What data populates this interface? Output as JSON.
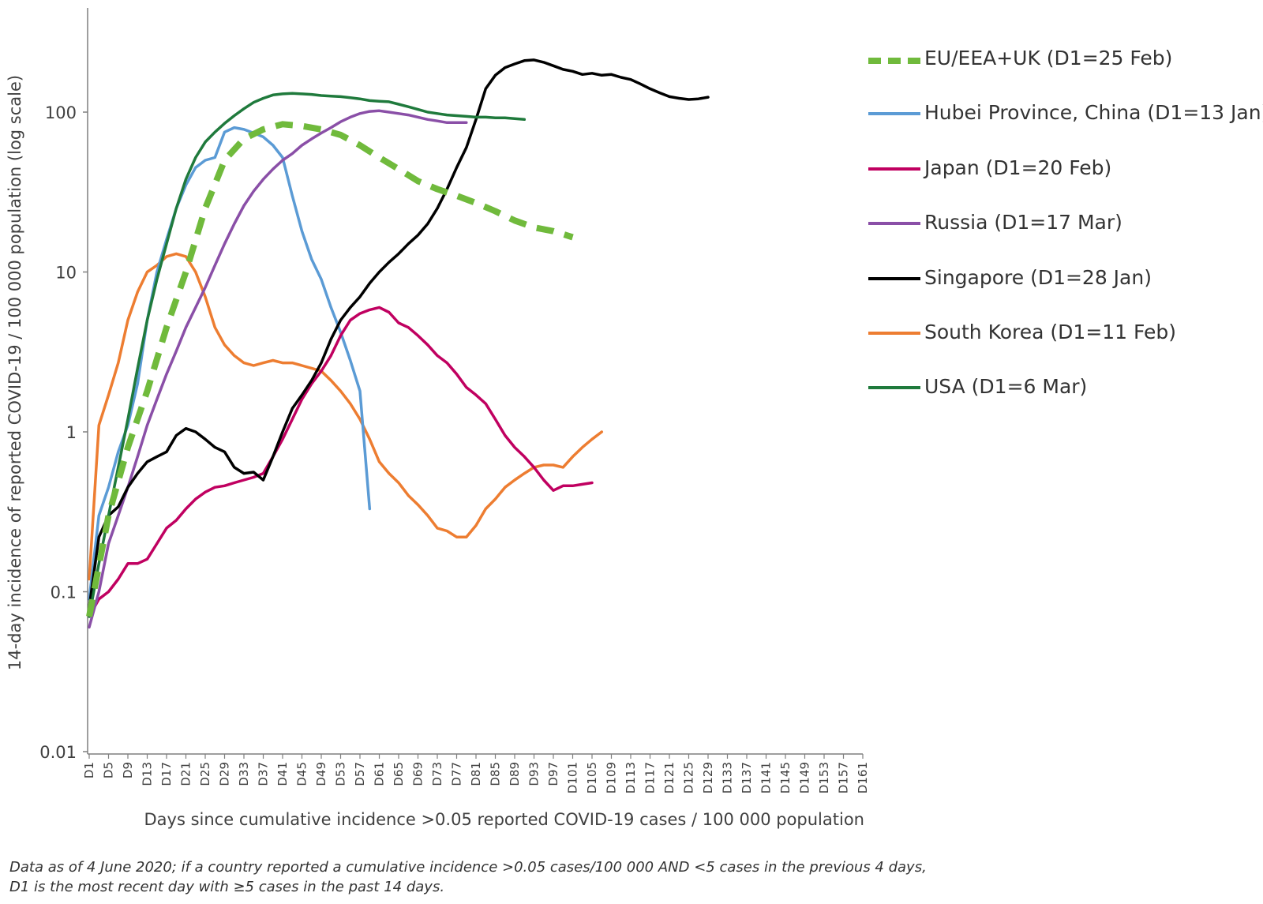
{
  "chart_data": {
    "type": "line",
    "title": "",
    "ylabel": "14-day incidence of reported COVID-19 / 100 000 population (log scale)",
    "xlabel": "Days since cumulative incidence >0.05 reported COVID-19 cases / 100 000 population",
    "yscale": "log",
    "ylim": [
      0.01,
      300
    ],
    "xlim": [
      1,
      162
    ],
    "y_ticks": [
      {
        "value": 0.01,
        "label": "0.01"
      },
      {
        "value": 0.1,
        "label": "0.1"
      },
      {
        "value": 1,
        "label": "1"
      },
      {
        "value": 10,
        "label": "10"
      },
      {
        "value": 100,
        "label": "100"
      }
    ],
    "x_ticks": [
      "D1",
      "D5",
      "D9",
      "D13",
      "D17",
      "D21",
      "D25",
      "D29",
      "D33",
      "D37",
      "D41",
      "D45",
      "D49",
      "D53",
      "D57",
      "D61",
      "D65",
      "D69",
      "D73",
      "D77",
      "D81",
      "D85",
      "D89",
      "D93",
      "D97",
      "D101",
      "D105",
      "D109",
      "D113",
      "D117",
      "D121",
      "D125",
      "D129",
      "D133",
      "D137",
      "D141",
      "D145",
      "D149",
      "D153",
      "D157",
      "D161"
    ],
    "legend_position": "right",
    "series": [
      {
        "name": "EU/EEA+UK  (D1=25 Feb)",
        "color": "#70ba3c",
        "dashed": true,
        "x": [
          1,
          5,
          9,
          13,
          17,
          21,
          25,
          29,
          33,
          37,
          41,
          45,
          49,
          53,
          57,
          61,
          65,
          69,
          73,
          77,
          81,
          85,
          89,
          93,
          97,
          101
        ],
        "y": [
          0.07,
          0.3,
          0.8,
          1.8,
          4.5,
          10,
          25,
          50,
          68,
          78,
          84,
          82,
          78,
          72,
          62,
          52,
          44,
          37,
          33,
          30,
          27,
          24,
          21,
          19,
          18,
          16.5
        ]
      },
      {
        "name": "Hubei Province, China  (D1=13 Jan)",
        "color": "#5b9bd5",
        "dashed": false,
        "x": [
          1,
          3,
          5,
          7,
          9,
          11,
          13,
          15,
          17,
          19,
          21,
          23,
          25,
          27,
          29,
          31,
          33,
          35,
          37,
          39,
          41,
          43,
          45,
          47,
          49,
          51,
          53,
          55,
          57,
          59
        ],
        "y": [
          0.09,
          0.3,
          0.45,
          0.75,
          1.1,
          2,
          5,
          10,
          16,
          25,
          35,
          45,
          50,
          52,
          75,
          80,
          78,
          74,
          70,
          62,
          52,
          30,
          18,
          12,
          9,
          6,
          4.2,
          2.8,
          1.8,
          0.33
        ]
      },
      {
        "name": "Japan  (D1=20 Feb)",
        "color": "#c00060",
        "dashed": false,
        "x": [
          1,
          3,
          5,
          7,
          9,
          11,
          13,
          15,
          17,
          19,
          21,
          23,
          25,
          27,
          29,
          31,
          33,
          35,
          37,
          39,
          41,
          43,
          45,
          47,
          49,
          51,
          53,
          55,
          57,
          59,
          61,
          63,
          65,
          67,
          69,
          71,
          73,
          75,
          77,
          79,
          81,
          83,
          85,
          87,
          89,
          91,
          93,
          95,
          97,
          99,
          101,
          103,
          105
        ],
        "y": [
          0.07,
          0.09,
          0.1,
          0.12,
          0.15,
          0.15,
          0.16,
          0.2,
          0.25,
          0.28,
          0.33,
          0.38,
          0.42,
          0.45,
          0.46,
          0.48,
          0.5,
          0.52,
          0.55,
          0.7,
          0.9,
          1.2,
          1.6,
          2.0,
          2.4,
          3.0,
          4.0,
          5.0,
          5.5,
          5.8,
          6.0,
          5.6,
          4.8,
          4.5,
          4.0,
          3.5,
          3.0,
          2.7,
          2.3,
          1.9,
          1.7,
          1.5,
          1.2,
          0.95,
          0.8,
          0.7,
          0.6,
          0.5,
          0.43,
          0.46,
          0.46,
          0.47,
          0.48
        ]
      },
      {
        "name": "Russia  (D1=17 Mar)",
        "color": "#8a4fa7",
        "dashed": false,
        "x": [
          1,
          3,
          5,
          7,
          9,
          11,
          13,
          15,
          17,
          19,
          21,
          23,
          25,
          27,
          29,
          31,
          33,
          35,
          37,
          39,
          41,
          43,
          45,
          47,
          49,
          51,
          53,
          55,
          57,
          59,
          61,
          63,
          65,
          67,
          69,
          71,
          73,
          75,
          77,
          79
        ],
        "y": [
          0.06,
          0.1,
          0.2,
          0.3,
          0.45,
          0.7,
          1.1,
          1.6,
          2.3,
          3.2,
          4.5,
          6,
          8,
          11,
          15,
          20,
          26,
          32,
          38,
          44,
          50,
          55,
          62,
          68,
          74,
          80,
          87,
          93,
          98,
          101,
          102,
          100,
          98,
          96,
          93,
          90,
          88,
          86,
          86,
          86
        ]
      },
      {
        "name": "Singapore  (D1=28 Jan)",
        "color": "#000000",
        "dashed": false,
        "x": [
          1,
          3,
          5,
          7,
          9,
          11,
          13,
          15,
          17,
          19,
          21,
          23,
          25,
          27,
          29,
          31,
          33,
          35,
          37,
          39,
          41,
          43,
          45,
          47,
          49,
          51,
          53,
          55,
          57,
          59,
          61,
          63,
          65,
          67,
          69,
          71,
          73,
          75,
          77,
          79,
          81,
          83,
          85,
          87,
          89,
          91,
          93,
          95,
          97,
          99,
          101,
          103,
          105,
          107,
          109,
          111,
          113,
          115,
          117,
          119,
          121,
          123,
          125,
          127,
          129
        ],
        "y": [
          0.08,
          0.22,
          0.3,
          0.34,
          0.45,
          0.55,
          0.65,
          0.7,
          0.75,
          0.95,
          1.05,
          1.0,
          0.9,
          0.8,
          0.75,
          0.6,
          0.55,
          0.56,
          0.5,
          0.7,
          1.0,
          1.4,
          1.7,
          2.1,
          2.7,
          3.8,
          5.0,
          6.0,
          7.0,
          8.5,
          10,
          11.5,
          13,
          15,
          17,
          20,
          25,
          33,
          45,
          60,
          90,
          140,
          170,
          190,
          200,
          210,
          212,
          205,
          195,
          185,
          180,
          172,
          175,
          170,
          172,
          165,
          160,
          150,
          140,
          132,
          125,
          122,
          120,
          121,
          124
        ]
      },
      {
        "name": "South Korea  (D1=11 Feb)",
        "color": "#ed7d31",
        "dashed": false,
        "x": [
          1,
          3,
          5,
          7,
          9,
          11,
          13,
          15,
          17,
          19,
          21,
          23,
          25,
          27,
          29,
          31,
          33,
          35,
          37,
          39,
          41,
          43,
          45,
          47,
          49,
          51,
          53,
          55,
          57,
          59,
          61,
          63,
          65,
          67,
          69,
          71,
          73,
          75,
          77,
          79,
          81,
          83,
          85,
          87,
          89,
          91,
          93,
          95,
          97,
          99,
          101,
          103,
          105,
          107
        ],
        "y": [
          0.12,
          1.1,
          1.7,
          2.7,
          5.0,
          7.5,
          10,
          11,
          12.5,
          13,
          12.5,
          10,
          7,
          4.5,
          3.5,
          3.0,
          2.7,
          2.6,
          2.7,
          2.8,
          2.7,
          2.7,
          2.6,
          2.5,
          2.4,
          2.1,
          1.8,
          1.5,
          1.2,
          0.9,
          0.65,
          0.55,
          0.48,
          0.4,
          0.35,
          0.3,
          0.25,
          0.24,
          0.22,
          0.22,
          0.26,
          0.33,
          0.38,
          0.45,
          0.5,
          0.55,
          0.6,
          0.62,
          0.62,
          0.6,
          0.7,
          0.8,
          0.9,
          1.0
        ]
      },
      {
        "name": "USA  (D1=6 Mar)",
        "color": "#1f7a3c",
        "dashed": false,
        "x": [
          1,
          3,
          5,
          7,
          9,
          11,
          13,
          15,
          17,
          19,
          21,
          23,
          25,
          27,
          29,
          31,
          33,
          35,
          37,
          39,
          41,
          43,
          45,
          47,
          49,
          51,
          53,
          55,
          57,
          59,
          61,
          63,
          65,
          67,
          69,
          71,
          73,
          75,
          77,
          79,
          81,
          83,
          85,
          87,
          89,
          91
        ],
        "y": [
          0.07,
          0.15,
          0.3,
          0.6,
          1.2,
          2.5,
          5,
          9,
          15,
          25,
          38,
          52,
          65,
          75,
          85,
          95,
          105,
          115,
          122,
          128,
          130,
          131,
          130,
          129,
          127,
          126,
          125,
          123,
          121,
          118,
          117,
          116,
          112,
          108,
          104,
          100,
          98,
          96,
          95,
          94,
          93,
          93,
          92,
          92,
          91,
          90
        ]
      }
    ]
  },
  "footnote": {
    "line1": "Data as of 4 June 2020; if a country reported a cumulative incidence >0.05 cases/100 000 AND <5 cases in the previous 4 days,",
    "line2": "D1 is the most recent day with ≥5 cases in the past 14 days."
  }
}
